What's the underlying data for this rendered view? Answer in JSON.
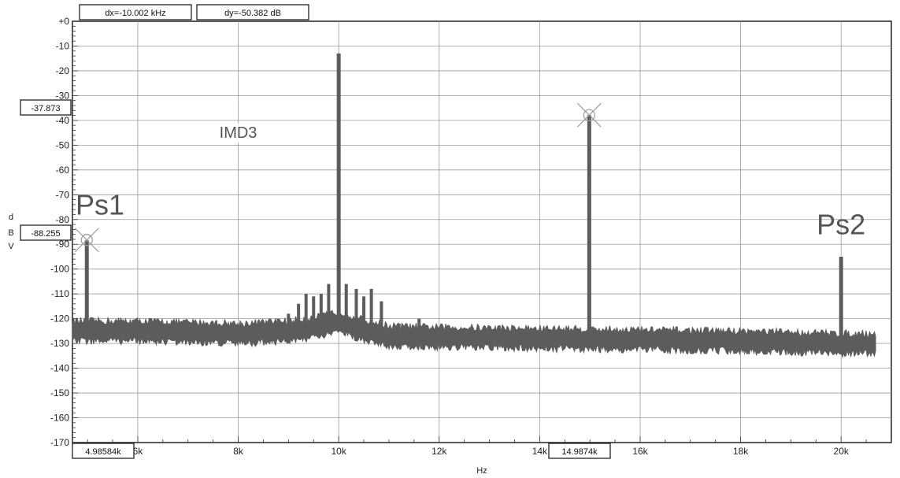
{
  "chart_data": {
    "type": "line",
    "xlabel": "Hz",
    "ylabel": "dBV",
    "ylabel_letters": [
      "d",
      "B",
      "V"
    ],
    "xlim": [
      4700,
      21000
    ],
    "ylim": [
      -170,
      0
    ],
    "x_ticks": [
      6000,
      8000,
      10000,
      12000,
      14000,
      16000,
      18000,
      20000
    ],
    "x_tick_labels": [
      "6k",
      "8k",
      "10k",
      "12k",
      "14k",
      "16k",
      "18k",
      "20k"
    ],
    "y_ticks": [
      0,
      -10,
      -20,
      -30,
      -40,
      -50,
      -60,
      -70,
      -80,
      -90,
      -100,
      -110,
      -120,
      -130,
      -140,
      -150,
      -160,
      -170
    ],
    "y_tick_labels": [
      "+0",
      "-10",
      "-20",
      "-30",
      "-40",
      "-50",
      "-60",
      "-70",
      "-80",
      "-90",
      "-100",
      "-110",
      "-120",
      "-130",
      "-140",
      "-150",
      "-160",
      "-170"
    ],
    "grid": true,
    "line_color": "#5c5c5c",
    "noise_floor": [
      {
        "x": 4700,
        "y": -125
      },
      {
        "x": 6000,
        "y": -125
      },
      {
        "x": 7000,
        "y": -125.5
      },
      {
        "x": 8000,
        "y": -126
      },
      {
        "x": 9000,
        "y": -125
      },
      {
        "x": 9700,
        "y": -123
      },
      {
        "x": 10000,
        "y": -121
      },
      {
        "x": 10400,
        "y": -124
      },
      {
        "x": 11000,
        "y": -127
      },
      {
        "x": 12000,
        "y": -127.5
      },
      {
        "x": 14000,
        "y": -128
      },
      {
        "x": 16000,
        "y": -128.5
      },
      {
        "x": 18000,
        "y": -129
      },
      {
        "x": 20000,
        "y": -130
      },
      {
        "x": 21000,
        "y": -130
      }
    ],
    "peaks": [
      {
        "x": 4986,
        "y": -88.3
      },
      {
        "x": 10000,
        "y": -13
      },
      {
        "x": 14987,
        "y": -37.9
      },
      {
        "x": 20000,
        "y": -95
      }
    ],
    "spurs": [
      {
        "x": 8600,
        "y": -122
      },
      {
        "x": 8800,
        "y": -120
      },
      {
        "x": 9000,
        "y": -118
      },
      {
        "x": 9200,
        "y": -114
      },
      {
        "x": 9350,
        "y": -110
      },
      {
        "x": 9500,
        "y": -111
      },
      {
        "x": 9650,
        "y": -110
      },
      {
        "x": 9800,
        "y": -106
      },
      {
        "x": 10150,
        "y": -106
      },
      {
        "x": 10350,
        "y": -108
      },
      {
        "x": 10500,
        "y": -111
      },
      {
        "x": 10650,
        "y": -108
      },
      {
        "x": 10850,
        "y": -113
      },
      {
        "x": 11200,
        "y": -122
      },
      {
        "x": 11600,
        "y": -120
      }
    ],
    "markers": [
      {
        "x": 4986,
        "y": -88.255
      },
      {
        "x": 14987,
        "y": -37.873
      }
    ],
    "annotations": [
      {
        "text": "Ps1",
        "x": 5000,
        "y": -78
      },
      {
        "text": "IMD3",
        "x": 8000,
        "y": -47
      },
      {
        "text": "Ps2",
        "x": 20000,
        "y": -86
      }
    ]
  },
  "readouts": {
    "dx": "dx=-10.002 kHz",
    "dy": "dy=-50.382 dB",
    "y_marker_1": "-37.873",
    "y_marker_2": "-88.255",
    "x_marker_1": "4.98584k",
    "x_marker_2": "14.9874k"
  }
}
